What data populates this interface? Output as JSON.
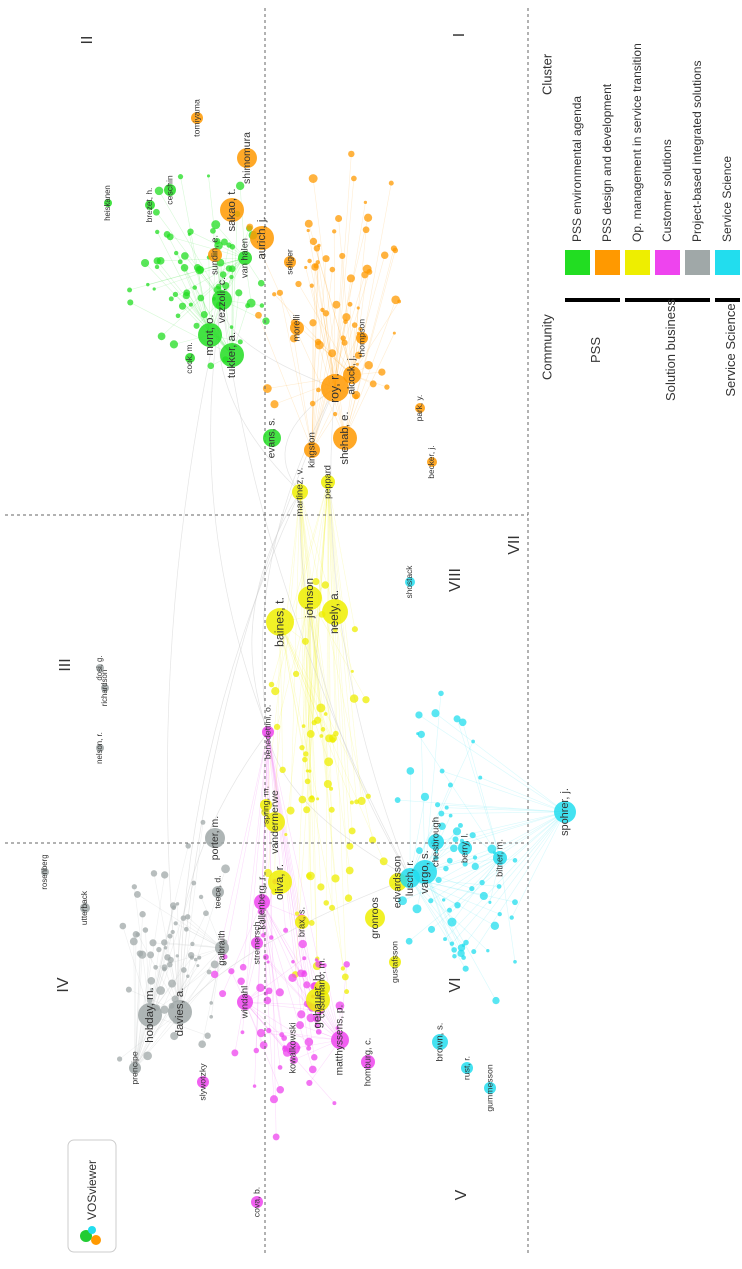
{
  "map": {
    "quadrants": [
      "I",
      "II",
      "III",
      "IV",
      "V",
      "VI",
      "VII",
      "VIII"
    ],
    "clusters": [
      {
        "name": "PSS environmental agenda",
        "color": "#22dd22",
        "nodes": [
          "vezzoli, c.",
          "mont, o.",
          "tukker, a.",
          "van halen",
          "evans, s.",
          "ceschin",
          "brezet, h.",
          "cook, m.",
          "heiskanen"
        ]
      },
      {
        "name": "PSS design and development",
        "color": "#ff9900",
        "nodes": [
          "roy, r.",
          "shehab, e.",
          "kingston",
          "alcock, j.",
          "morelli",
          "aurich, j.",
          "sakao, t.",
          "shimomura",
          "tomiyama",
          "sundin, e.",
          "seliger",
          "thompson",
          "park, y.",
          "becker, j."
        ]
      },
      {
        "name": "Op. management in service transition",
        "color": "#eeee00",
        "nodes": [
          "martinez, v.",
          "peppard",
          "baines, t.",
          "johnson",
          "neely, a.",
          "vandermerwe",
          "oliva, r.",
          "brax, s.",
          "gebauer, h.",
          "gronroos",
          "edvardsson",
          "gustafsson",
          "cusumano, m.",
          "spring, m."
        ]
      },
      {
        "name": "Customer solutions",
        "color": "#ee44ee",
        "nodes": [
          "benedettini, o.",
          "kallenberg, r.",
          "windahl",
          "matthyssens, p.",
          "kowalkowski",
          "homburg, c.",
          "stremersch",
          "cova, b.",
          "slywotzky"
        ]
      },
      {
        "name": "Project-based integrated solutions",
        "color": "#a0a8a8",
        "nodes": [
          "davies, a.",
          "hobday, m.",
          "prencipe",
          "galbraith",
          "porter, m.",
          "teece, d.",
          "dosi, g.",
          "richardson",
          "nelson, r.",
          "utterback",
          "rosenberg"
        ]
      },
      {
        "name": "Service Science",
        "color": "#22ddee",
        "nodes": [
          "lusch, r.",
          "vargo, s.",
          "spohrer, j.",
          "bitner, m.",
          "berry, l.",
          "chesbrough",
          "brown, s.",
          "rust, r.",
          "gummesson",
          "shostack"
        ]
      }
    ]
  },
  "legend": {
    "community_title": "Community",
    "cluster_title": "Cluster",
    "communities": [
      "PSS",
      "Solution business",
      "Service Science"
    ]
  },
  "logo": "VOSviewer"
}
